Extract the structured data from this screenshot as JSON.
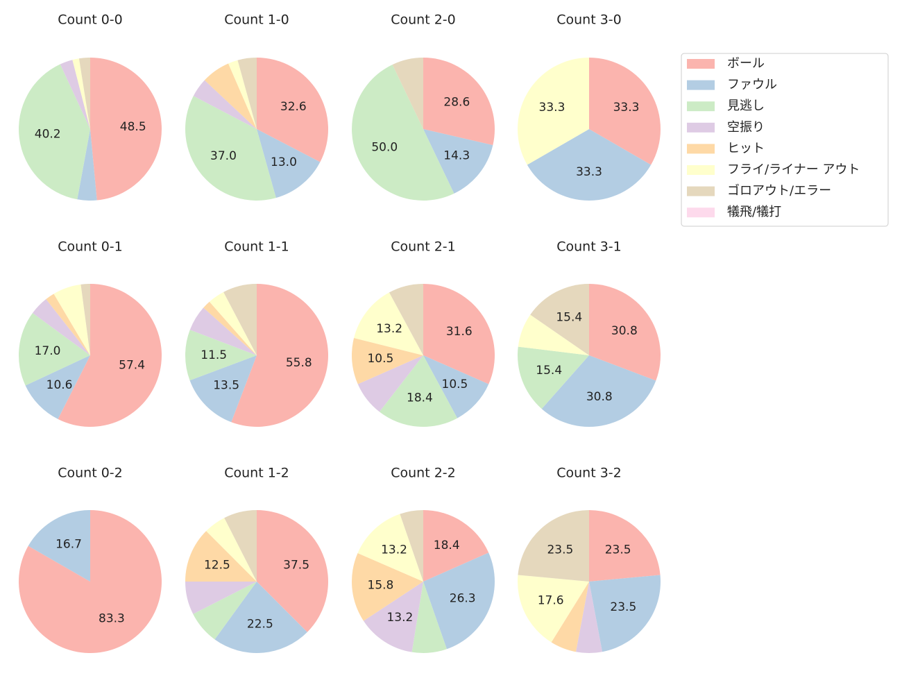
{
  "chart_data": {
    "type": "pie",
    "categories": [
      "ボール",
      "ファウル",
      "見逃し",
      "空振り",
      "ヒット",
      "フライ/ライナー アウト",
      "ゴロアウト/エラー",
      "犠飛/犠打"
    ],
    "colors": [
      "#fbb4ae",
      "#b3cde3",
      "#ccebc5",
      "#decbe4",
      "#fed9a6",
      "#ffffcc",
      "#e5d8bd",
      "#fddaec"
    ],
    "legend": "upper right",
    "charts": [
      {
        "title": "Count 0-0",
        "values": [
          48.5,
          4.4,
          40.2,
          2.9,
          0,
          1.5,
          2.5,
          0
        ],
        "value_labels": [
          "48.5",
          null,
          "40.2",
          null,
          null,
          null,
          null,
          null
        ]
      },
      {
        "title": "Count 1-0",
        "values": [
          32.6,
          13.0,
          37.0,
          4.3,
          6.5,
          2.2,
          4.3,
          0
        ],
        "value_labels": [
          "32.6",
          "13.0",
          "37.0",
          null,
          null,
          null,
          null,
          null
        ]
      },
      {
        "title": "Count 2-0",
        "values": [
          28.6,
          14.3,
          50.0,
          0,
          0,
          0,
          7.1,
          0
        ],
        "value_labels": [
          "28.6",
          "14.3",
          "50.0",
          null,
          null,
          null,
          null,
          null
        ]
      },
      {
        "title": "Count 3-0",
        "values": [
          33.3,
          33.3,
          0,
          0,
          0,
          33.3,
          0,
          0
        ],
        "value_labels": [
          "33.3",
          "33.3",
          null,
          null,
          null,
          "33.3",
          null,
          null
        ]
      },
      {
        "title": "Count 0-1",
        "values": [
          57.4,
          10.6,
          17.0,
          4.3,
          2.1,
          6.4,
          2.1,
          0
        ],
        "value_labels": [
          "57.4",
          "10.6",
          "17.0",
          null,
          null,
          null,
          null,
          null
        ]
      },
      {
        "title": "Count 1-1",
        "values": [
          55.8,
          13.5,
          11.5,
          5.8,
          1.9,
          3.8,
          7.7,
          0
        ],
        "value_labels": [
          "55.8",
          "13.5",
          "11.5",
          null,
          null,
          null,
          null,
          null
        ]
      },
      {
        "title": "Count 2-1",
        "values": [
          31.6,
          10.5,
          18.4,
          7.9,
          10.5,
          13.2,
          7.9,
          0
        ],
        "value_labels": [
          "31.6",
          "10.5",
          "18.4",
          null,
          "10.5",
          "13.2",
          null,
          null
        ]
      },
      {
        "title": "Count 3-1",
        "values": [
          30.8,
          30.8,
          15.4,
          0,
          0,
          7.7,
          15.4,
          0
        ],
        "value_labels": [
          "30.8",
          "30.8",
          "15.4",
          null,
          null,
          null,
          "15.4",
          null
        ]
      },
      {
        "title": "Count 0-2",
        "values": [
          83.3,
          16.7,
          0,
          0,
          0,
          0,
          0,
          0
        ],
        "value_labels": [
          "83.3",
          "16.7",
          null,
          null,
          null,
          null,
          null,
          null
        ]
      },
      {
        "title": "Count 1-2",
        "values": [
          37.5,
          22.5,
          7.5,
          7.5,
          12.5,
          5.0,
          7.5,
          0
        ],
        "value_labels": [
          "37.5",
          "22.5",
          null,
          null,
          "12.5",
          null,
          null,
          null
        ]
      },
      {
        "title": "Count 2-2",
        "values": [
          18.4,
          26.3,
          7.9,
          13.2,
          15.8,
          13.2,
          5.3,
          0
        ],
        "value_labels": [
          "18.4",
          "26.3",
          null,
          "13.2",
          "15.8",
          "13.2",
          null,
          null
        ]
      },
      {
        "title": "Count 3-2",
        "values": [
          23.5,
          23.5,
          0,
          5.9,
          5.9,
          17.6,
          23.5,
          0
        ],
        "value_labels": [
          "23.5",
          "23.5",
          null,
          null,
          null,
          "17.6",
          "23.5",
          null
        ]
      }
    ]
  }
}
